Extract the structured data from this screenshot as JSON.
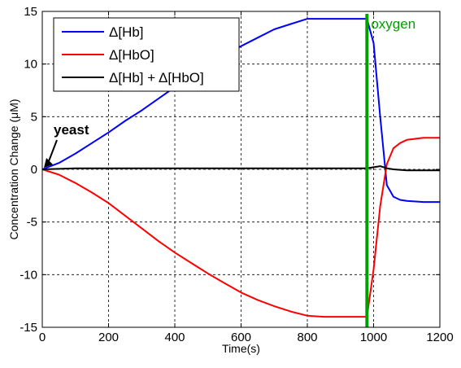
{
  "chart_data": {
    "type": "line",
    "xlabel": "Time(s)",
    "ylabel": "Concentration Change (μM)",
    "xlim": [
      0,
      1200
    ],
    "ylim": [
      -15,
      15
    ],
    "xticks": [
      0,
      200,
      400,
      600,
      800,
      1000,
      1200
    ],
    "yticks": [
      -15,
      -10,
      -5,
      0,
      5,
      10,
      15
    ],
    "grid": true,
    "legend_position": "top-left",
    "series": [
      {
        "name": "Δ[Hb]",
        "color": "#0000ff",
        "x": [
          0,
          50,
          100,
          150,
          200,
          250,
          300,
          350,
          400,
          450,
          500,
          550,
          600,
          650,
          700,
          750,
          800,
          850,
          900,
          950,
          980,
          1000,
          1020,
          1040,
          1060,
          1080,
          1100,
          1150,
          1200
        ],
        "y": [
          0,
          0.6,
          1.5,
          2.5,
          3.5,
          4.6,
          5.6,
          6.7,
          7.8,
          8.9,
          9.9,
          10.9,
          11.7,
          12.5,
          13.3,
          13.8,
          14.3,
          14.3,
          14.3,
          14.3,
          14.3,
          12,
          5,
          -1.5,
          -2.6,
          -2.9,
          -3,
          -3.1,
          -3.1
        ]
      },
      {
        "name": "Δ[HbO]",
        "color": "#ff0000",
        "x": [
          0,
          50,
          100,
          150,
          200,
          250,
          300,
          350,
          400,
          450,
          500,
          550,
          600,
          650,
          700,
          750,
          800,
          850,
          900,
          950,
          980,
          1000,
          1020,
          1040,
          1060,
          1080,
          1100,
          1150,
          1200
        ],
        "y": [
          0,
          -0.5,
          -1.3,
          -2.2,
          -3.2,
          -4.4,
          -5.6,
          -6.8,
          -7.9,
          -8.9,
          -9.9,
          -10.8,
          -11.7,
          -12.4,
          -13.0,
          -13.5,
          -13.9,
          -14.0,
          -14.0,
          -14.0,
          -14.0,
          -9.5,
          -3.5,
          0.5,
          2.0,
          2.5,
          2.8,
          3.0,
          3.0
        ]
      },
      {
        "name": "Δ[Hb] + Δ[HbO]",
        "color": "#000000",
        "x": [
          0,
          100,
          200,
          300,
          400,
          500,
          600,
          700,
          800,
          900,
          980,
          1000,
          1020,
          1040,
          1060,
          1100,
          1200
        ],
        "y": [
          0,
          0.1,
          0.1,
          0.1,
          0.1,
          0.1,
          0.1,
          0.1,
          0.1,
          0.1,
          0.1,
          0.2,
          0.3,
          0.1,
          0,
          -0.1,
          -0.1
        ]
      }
    ],
    "annotations": [
      {
        "text": "yeast",
        "x": 0,
        "y": 0
      },
      {
        "text": "oxygen",
        "x": 980
      }
    ]
  }
}
